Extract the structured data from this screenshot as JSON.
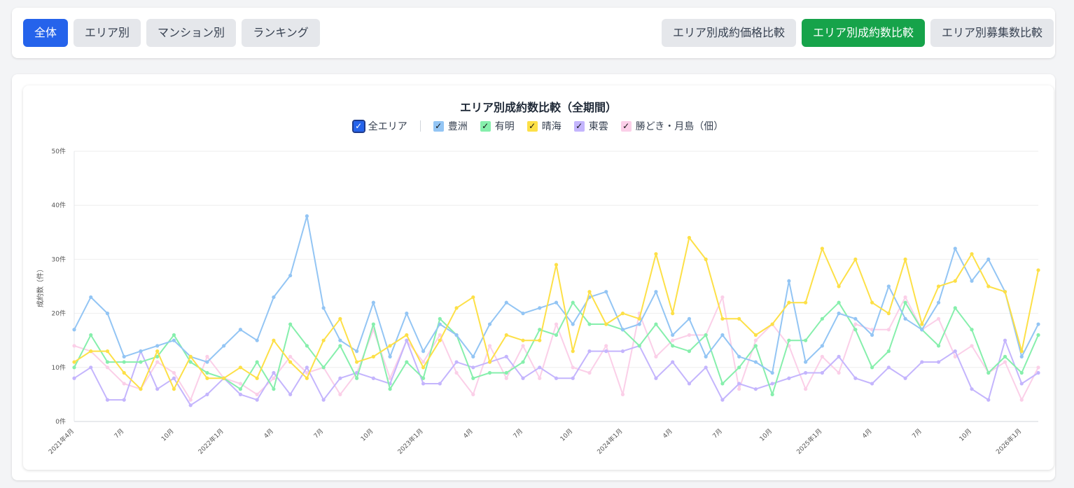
{
  "nav": {
    "left_buttons": [
      "全体",
      "エリア別",
      "マンション別",
      "ランキング"
    ],
    "right_buttons": [
      "エリア別成約価格比較",
      "エリア別成約数比較",
      "エリア別募集数比較"
    ]
  },
  "legend": {
    "all_label": "全エリア"
  },
  "colors": {
    "primary": "#2563eb",
    "success": "#16a34a",
    "button_bg": "#e5e7eb"
  },
  "chart_data": {
    "type": "line",
    "title": "エリア別成約数比較（全期間）",
    "ylabel": "成約数（件）",
    "xlabel": "",
    "ylim": [
      0,
      50
    ],
    "yticks": [
      "0件",
      "10件",
      "20件",
      "30件",
      "40件",
      "50件"
    ],
    "x_tick_labels": [
      "2021年4月",
      "7月",
      "10月",
      "2022年1月",
      "4月",
      "7月",
      "10月",
      "2023年1月",
      "4月",
      "7月",
      "10月",
      "2024年1月",
      "4月",
      "7月",
      "10月",
      "2025年1月",
      "4月",
      "7月",
      "10月",
      "2026年1月"
    ],
    "months_count": 59,
    "grid": true,
    "legend_position": "top",
    "series": [
      {
        "name": "豊洲",
        "color": "#93c5f4",
        "values": [
          17,
          23,
          20,
          12,
          13,
          14,
          15,
          12,
          11,
          14,
          17,
          15,
          23,
          27,
          38,
          21,
          15,
          13,
          22,
          12,
          20,
          13,
          18,
          16,
          12,
          18,
          22,
          20,
          21,
          22,
          18,
          23,
          24,
          17,
          18,
          24,
          16,
          19,
          12,
          16,
          12,
          11,
          9,
          26,
          11,
          14,
          20,
          19,
          16,
          25,
          19,
          17,
          22,
          32,
          26,
          30,
          24,
          12,
          18
        ]
      },
      {
        "name": "有明",
        "color": "#86efac",
        "values": [
          10,
          16,
          11,
          11,
          11,
          12,
          16,
          11,
          9,
          8,
          6,
          11,
          6,
          18,
          14,
          10,
          14,
          8,
          18,
          6,
          11,
          8,
          19,
          16,
          8,
          9,
          9,
          11,
          17,
          16,
          22,
          18,
          18,
          17,
          14,
          18,
          14,
          13,
          16,
          7,
          10,
          14,
          5,
          15,
          15,
          19,
          22,
          17,
          10,
          13,
          22,
          17,
          14,
          21,
          17,
          9,
          12,
          9,
          16
        ]
      },
      {
        "name": "晴海",
        "color": "#fde047",
        "values": [
          11,
          13,
          13,
          9,
          6,
          13,
          6,
          12,
          8,
          8,
          10,
          8,
          15,
          11,
          8,
          15,
          19,
          11,
          12,
          14,
          16,
          10,
          15,
          21,
          23,
          11,
          16,
          15,
          15,
          29,
          13,
          24,
          18,
          20,
          19,
          31,
          20,
          34,
          30,
          19,
          19,
          16,
          18,
          22,
          22,
          32,
          25,
          30,
          22,
          20,
          30,
          18,
          25,
          26,
          31,
          25,
          24,
          13,
          28
        ]
      },
      {
        "name": "東雲",
        "color": "#c4b5fd",
        "values": [
          8,
          10,
          4,
          4,
          13,
          6,
          8,
          3,
          5,
          8,
          5,
          4,
          9,
          5,
          10,
          4,
          8,
          9,
          8,
          7,
          15,
          7,
          7,
          11,
          10,
          11,
          12,
          8,
          10,
          8,
          8,
          13,
          13,
          13,
          14,
          8,
          11,
          7,
          10,
          4,
          7,
          6,
          7,
          8,
          9,
          9,
          12,
          8,
          7,
          10,
          8,
          11,
          11,
          13,
          6,
          4,
          15,
          7,
          9
        ]
      },
      {
        "name": "勝どき・月島（佃）",
        "color": "#fbcfe8",
        "values": [
          14,
          13,
          10,
          7,
          6,
          11,
          9,
          4,
          12,
          8,
          7,
          5,
          8,
          12,
          9,
          10,
          5,
          9,
          17,
          8,
          15,
          11,
          16,
          9,
          5,
          14,
          8,
          14,
          8,
          18,
          10,
          9,
          14,
          5,
          20,
          12,
          15,
          16,
          16,
          23,
          6,
          15,
          18,
          14,
          6,
          12,
          9,
          18,
          17,
          17,
          23,
          17,
          19,
          12,
          14,
          9,
          11,
          4,
          10
        ]
      }
    ]
  }
}
